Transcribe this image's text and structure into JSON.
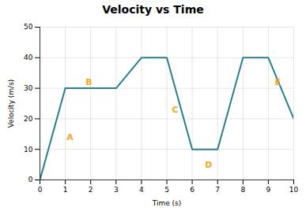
{
  "chart_data": {
    "type": "line",
    "title": "Velocity vs Time",
    "xlabel": "Time (s)",
    "ylabel": "Velocity (m/s)",
    "x": [
      0,
      1,
      3,
      4,
      5,
      6,
      7,
      8,
      9,
      10
    ],
    "values": [
      0,
      30,
      30,
      40,
      40,
      10,
      10,
      40,
      40,
      20
    ],
    "color": "#2a7f8a",
    "xlim": [
      0,
      10
    ],
    "ylim": [
      0,
      50
    ],
    "xticks": [
      0,
      1,
      2,
      3,
      4,
      5,
      6,
      7,
      8,
      9,
      10
    ],
    "yticks": [
      0,
      10,
      20,
      30,
      40,
      50
    ],
    "grid": true,
    "annotations": [
      {
        "text": "A",
        "x": 1.05,
        "y": 13,
        "color": "#f5a623"
      },
      {
        "text": "B",
        "x": 1.8,
        "y": 31,
        "color": "#f5a623"
      },
      {
        "text": "C",
        "x": 5.2,
        "y": 22,
        "color": "#f5a623"
      },
      {
        "text": "D",
        "x": 6.5,
        "y": 4,
        "color": "#f5a623"
      },
      {
        "text": "E",
        "x": 9.25,
        "y": 31,
        "color": "#f5a623"
      }
    ]
  }
}
